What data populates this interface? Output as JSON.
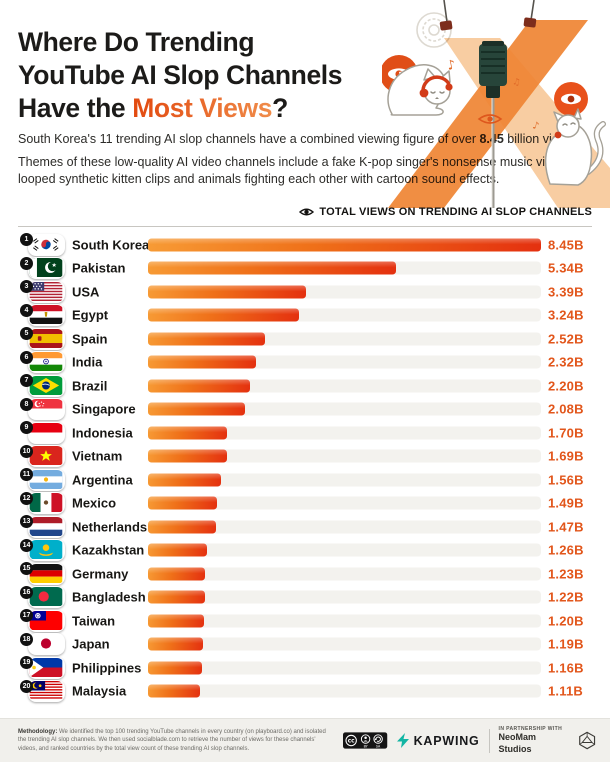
{
  "header": {
    "title_line1": "Where Do Trending",
    "title_line2": "YouTube AI Slop Channels",
    "title_line3_prefix": "Have the ",
    "title_highlight": "Most Views",
    "title_suffix": "?",
    "intro_prefix": "South Korea's 11 trending AI slop channels have a combined viewing figure of over ",
    "intro_bold": "8.45",
    "intro_suffix": " billion views.",
    "description": "Themes of these low-quality AI video channels include a fake K-pop singer's nonsense music videos, looped synthetic kitten clips and animals fighting each other with cartoon sound effects."
  },
  "chart_header": {
    "icon": "eye-icon",
    "label": "TOTAL VIEWS ON TRENDING AI SLOP CHANNELS"
  },
  "chart_data": {
    "type": "bar",
    "orientation": "horizontal",
    "title": "TOTAL VIEWS ON TRENDING AI SLOP CHANNELS",
    "unit": "billion views",
    "max_value": 8.45,
    "xlim": [
      0,
      8.45
    ],
    "legend": "none",
    "grid": "off",
    "bar_color_start": "#F79B35",
    "bar_color_end": "#E4300F",
    "categories": [
      "South Korea",
      "Pakistan",
      "USA",
      "Egypt",
      "Spain",
      "India",
      "Brazil",
      "Singapore",
      "Indonesia",
      "Vietnam",
      "Argentina",
      "Mexico",
      "Netherlands",
      "Kazakhstan",
      "Germany",
      "Bangladesh",
      "Taiwan",
      "Japan",
      "Philippines",
      "Malaysia"
    ],
    "values": [
      8.45,
      5.34,
      3.39,
      3.24,
      2.52,
      2.32,
      2.2,
      2.08,
      1.7,
      1.69,
      1.56,
      1.49,
      1.47,
      1.26,
      1.23,
      1.22,
      1.2,
      1.19,
      1.16,
      1.11
    ],
    "rows": [
      {
        "rank": 1,
        "country": "South Korea",
        "flag": "kr",
        "value": 8.45,
        "label": "8.45B"
      },
      {
        "rank": 2,
        "country": "Pakistan",
        "flag": "pk",
        "value": 5.34,
        "label": "5.34B"
      },
      {
        "rank": 3,
        "country": "USA",
        "flag": "us",
        "value": 3.39,
        "label": "3.39B"
      },
      {
        "rank": 4,
        "country": "Egypt",
        "flag": "eg",
        "value": 3.24,
        "label": "3.24B"
      },
      {
        "rank": 5,
        "country": "Spain",
        "flag": "es",
        "value": 2.52,
        "label": "2.52B"
      },
      {
        "rank": 6,
        "country": "India",
        "flag": "in",
        "value": 2.32,
        "label": "2.32B"
      },
      {
        "rank": 7,
        "country": "Brazil",
        "flag": "br",
        "value": 2.2,
        "label": "2.20B"
      },
      {
        "rank": 8,
        "country": "Singapore",
        "flag": "sg",
        "value": 2.08,
        "label": "2.08B"
      },
      {
        "rank": 9,
        "country": "Indonesia",
        "flag": "id",
        "value": 1.7,
        "label": "1.70B"
      },
      {
        "rank": 10,
        "country": "Vietnam",
        "flag": "vn",
        "value": 1.69,
        "label": "1.69B"
      },
      {
        "rank": 11,
        "country": "Argentina",
        "flag": "ar",
        "value": 1.56,
        "label": "1.56B"
      },
      {
        "rank": 12,
        "country": "Mexico",
        "flag": "mx",
        "value": 1.49,
        "label": "1.49B"
      },
      {
        "rank": 13,
        "country": "Netherlands",
        "flag": "nl",
        "value": 1.47,
        "label": "1.47B"
      },
      {
        "rank": 14,
        "country": "Kazakhstan",
        "flag": "kz",
        "value": 1.26,
        "label": "1.26B"
      },
      {
        "rank": 15,
        "country": "Germany",
        "flag": "de",
        "value": 1.23,
        "label": "1.23B"
      },
      {
        "rank": 16,
        "country": "Bangladesh",
        "flag": "bd",
        "value": 1.22,
        "label": "1.22B"
      },
      {
        "rank": 17,
        "country": "Taiwan",
        "flag": "tw",
        "value": 1.2,
        "label": "1.20B"
      },
      {
        "rank": 18,
        "country": "Japan",
        "flag": "jp",
        "value": 1.19,
        "label": "1.19B"
      },
      {
        "rank": 19,
        "country": "Philippines",
        "flag": "ph",
        "value": 1.16,
        "label": "1.16B"
      },
      {
        "rank": 20,
        "country": "Malaysia",
        "flag": "my",
        "value": 1.11,
        "label": "1.11B"
      }
    ]
  },
  "footer": {
    "methodology_label": "Methodology:",
    "methodology_text": " We identified the top 100 trending YouTube channels in every country (on playboard.co) and isolated the trending AI slop channels. We then used socialblade.com to retrieve the number of views for these channels' videos, and ranked countries by the total view count of these trending AI slop channels.",
    "license": "CC BY-SA",
    "brand": "KAPWING",
    "partnership_label": "IN PARTNERSHIP WITH",
    "partner": "NeoMam Studios"
  },
  "colors": {
    "accent_orange": "#E2561B",
    "bar_gradient_start": "#F79B35",
    "bar_gradient_end": "#E4300F",
    "highlight_gradient_start": "#E2490F",
    "highlight_gradient_end": "#F08C4A",
    "footer_bg": "#F1F0EC",
    "kapwing_teal": "#12B5A3"
  }
}
